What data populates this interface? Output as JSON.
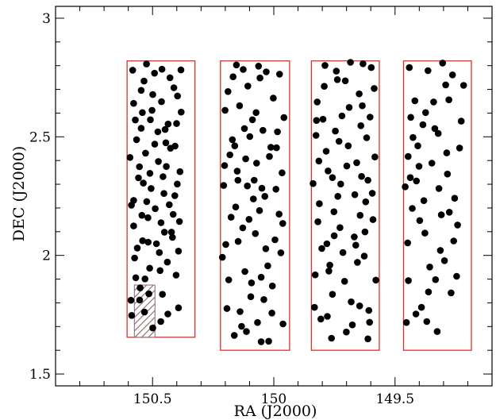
{
  "chart_data": {
    "type": "scatter",
    "xlabel": "RA (J2000)",
    "ylabel": "DEC (J2000)",
    "xlim": [
      150.9,
      149.1
    ],
    "ylim": [
      1.45,
      3.05
    ],
    "xaxis_reversed": true,
    "xticks": [
      150.5,
      150,
      149.5
    ],
    "xtick_labels": [
      "150.5",
      "150",
      "149.5"
    ],
    "yticks": [
      1.5,
      2,
      2.5,
      3
    ],
    "ytick_labels": [
      "1.5",
      "2",
      "2.5",
      "3"
    ],
    "grid": false,
    "legend": "none",
    "marker_color": "#000000",
    "field_outline_color": "#e0302a",
    "masked_region_color": "#8a6a6a",
    "fields": [
      {
        "ra_min": 150.325,
        "ra_max": 150.605,
        "dec_min": 1.655,
        "dec_max": 2.82
      },
      {
        "ra_min": 149.935,
        "ra_max": 150.22,
        "dec_min": 1.6,
        "dec_max": 2.82
      },
      {
        "ra_min": 149.565,
        "ra_max": 149.845,
        "dec_min": 1.6,
        "dec_max": 2.82
      },
      {
        "ra_min": 149.185,
        "ra_max": 149.465,
        "dec_min": 1.6,
        "dec_max": 2.82
      }
    ],
    "masked_region": {
      "ra_min": 150.49,
      "ra_max": 150.575,
      "dec_min": 1.655,
      "dec_max": 1.875
    },
    "points": [
      [
        150.553,
        1.812
      ],
      [
        150.393,
        2.018
      ],
      [
        150.512,
        1.946
      ],
      [
        150.538,
        2.305
      ],
      [
        150.422,
        2.098
      ],
      [
        150.502,
        2.612
      ],
      [
        150.506,
        2.282
      ],
      [
        150.578,
        2.232
      ],
      [
        150.465,
        2.138
      ],
      [
        150.531,
        1.901
      ],
      [
        150.412,
        2.707
      ],
      [
        150.445,
        2.475
      ],
      [
        150.563,
        2.031
      ],
      [
        150.387,
        2.353
      ],
      [
        150.492,
        2.768
      ],
      [
        150.529,
        2.431
      ],
      [
        150.459,
        1.836
      ],
      [
        150.571,
        2.571
      ],
      [
        150.431,
        2.214
      ],
      [
        150.519,
        2.159
      ],
      [
        150.401,
        2.556
      ],
      [
        150.484,
        2.049
      ],
      [
        150.547,
        2.696
      ],
      [
        150.586,
        1.747
      ],
      [
        150.476,
        2.396
      ],
      [
        150.439,
        1.972
      ],
      [
        150.525,
        2.807
      ],
      [
        150.393,
        1.779
      ],
      [
        150.554,
        2.374
      ],
      [
        150.463,
        2.648
      ],
      [
        150.578,
        2.124
      ],
      [
        150.408,
        2.252
      ],
      [
        150.499,
        1.694
      ],
      [
        150.448,
        2.531
      ],
      [
        150.566,
        2.488
      ],
      [
        150.418,
        2.076
      ],
      [
        150.535,
        2.735
      ],
      [
        150.489,
        2.197
      ],
      [
        150.382,
        2.604
      ],
      [
        150.551,
        1.863
      ],
      [
        150.457,
        2.332
      ],
      [
        150.593,
        2.413
      ],
      [
        150.437,
        1.753
      ],
      [
        150.509,
        2.572
      ],
      [
        150.472,
        2.012
      ],
      [
        150.582,
        2.781
      ],
      [
        150.426,
        2.452
      ],
      [
        150.544,
        2.169
      ],
      [
        150.397,
        2.672
      ],
      [
        150.518,
        2.056
      ],
      [
        150.453,
        2.261
      ],
      [
        150.574,
        1.989
      ],
      [
        150.403,
        1.917
      ],
      [
        150.491,
        2.469
      ],
      [
        150.542,
        2.602
      ],
      [
        150.466,
        1.721
      ],
      [
        150.389,
        2.143
      ],
      [
        150.558,
        2.327
      ],
      [
        150.428,
        2.749
      ],
      [
        150.515,
        1.838
      ],
      [
        150.478,
        2.521
      ],
      [
        150.587,
        2.212
      ],
      [
        150.443,
        2.375
      ],
      [
        150.533,
        1.761
      ],
      [
        150.407,
        2.461
      ],
      [
        150.499,
        2.678
      ],
      [
        150.569,
        1.906
      ],
      [
        150.451,
        2.098
      ],
      [
        150.383,
        2.782
      ],
      [
        150.547,
        2.536
      ],
      [
        150.469,
        1.936
      ],
      [
        150.511,
        2.346
      ],
      [
        150.415,
        2.173
      ],
      [
        150.578,
        2.641
      ],
      [
        150.436,
        2.554
      ],
      [
        150.524,
        2.227
      ],
      [
        150.461,
        2.785
      ],
      [
        150.589,
        1.811
      ],
      [
        150.398,
        2.301
      ],
      [
        150.541,
        2.062
      ],
      [
        149.978,
        2.174
      ],
      [
        150.012,
        2.456
      ],
      [
        150.057,
        2.748
      ],
      [
        150.092,
        1.884
      ],
      [
        150.148,
        2.317
      ],
      [
        150.201,
        2.612
      ],
      [
        149.962,
        1.711
      ],
      [
        150.033,
        2.028
      ],
      [
        150.121,
        2.535
      ],
      [
        150.176,
        2.161
      ],
      [
        150.071,
        2.389
      ],
      [
        149.991,
        2.279
      ],
      [
        150.139,
        1.763
      ],
      [
        150.198,
        2.046
      ],
      [
        150.052,
        1.636
      ],
      [
        150.107,
        2.714
      ],
      [
        149.958,
        2.581
      ],
      [
        150.025,
        1.956
      ],
      [
        150.161,
        2.462
      ],
      [
        150.084,
        2.238
      ],
      [
        150.186,
        1.897
      ],
      [
        150.002,
        2.663
      ],
      [
        150.128,
        2.116
      ],
      [
        150.063,
        2.798
      ],
      [
        149.971,
        2.011
      ],
      [
        150.151,
        2.355
      ],
      [
        150.041,
        1.814
      ],
      [
        150.099,
        2.501
      ],
      [
        150.207,
        2.295
      ],
      [
        150.018,
        2.417
      ],
      [
        150.113,
        1.679
      ],
      [
        150.168,
        2.753
      ],
      [
        149.985,
        2.521
      ],
      [
        150.076,
        2.092
      ],
      [
        150.141,
        2.631
      ],
      [
        150.049,
        2.283
      ],
      [
        150.193,
        1.776
      ],
      [
        150.006,
        1.871
      ],
      [
        150.088,
        2.572
      ],
      [
        150.157,
        2.204
      ],
      [
        149.966,
        2.348
      ],
      [
        150.031,
        2.774
      ],
      [
        150.119,
        1.932
      ],
      [
        150.181,
        2.424
      ],
      [
        150.067,
        1.717
      ],
      [
        150.102,
        2.152
      ],
      [
        149.995,
        2.066
      ],
      [
        150.154,
        2.803
      ],
      [
        150.045,
        2.527
      ],
      [
        150.212,
        1.992
      ],
      [
        150.081,
        2.317
      ],
      [
        150.133,
        1.701
      ],
      [
        149.976,
        2.764
      ],
      [
        150.059,
        2.189
      ],
      [
        150.171,
        2.488
      ],
      [
        150.021,
        1.638
      ],
      [
        150.116,
        2.407
      ],
      [
        150.037,
        2.249
      ],
      [
        150.189,
        2.691
      ],
      [
        150.095,
        1.826
      ],
      [
        150.147,
        2.059
      ],
      [
        149.963,
        2.135
      ],
      [
        150.073,
        2.602
      ],
      [
        150.203,
        2.379
      ],
      [
        150.008,
        1.757
      ],
      [
        150.126,
        2.784
      ],
      [
        150.052,
        1.908
      ],
      [
        150.163,
        1.663
      ],
      [
        149.989,
        2.454
      ],
      [
        150.109,
        2.293
      ],
      [
        149.612,
        2.317
      ],
      [
        149.781,
        2.049
      ],
      [
        149.705,
        2.736
      ],
      [
        149.646,
        1.787
      ],
      [
        149.824,
        2.569
      ],
      [
        149.583,
        2.415
      ],
      [
        149.752,
        2.184
      ],
      [
        149.689,
        2.624
      ],
      [
        149.806,
        1.732
      ],
      [
        149.624,
        2.099
      ],
      [
        149.731,
        2.481
      ],
      [
        149.598,
        2.792
      ],
      [
        149.773,
        1.934
      ],
      [
        149.666,
        2.256
      ],
      [
        149.838,
        2.303
      ],
      [
        149.612,
        1.648
      ],
      [
        149.715,
        2.012
      ],
      [
        149.792,
        2.713
      ],
      [
        149.641,
        2.547
      ],
      [
        149.758,
        1.836
      ],
      [
        149.579,
        1.896
      ],
      [
        149.699,
        2.377
      ],
      [
        149.818,
        2.142
      ],
      [
        149.655,
        1.971
      ],
      [
        149.742,
        2.777
      ],
      [
        149.621,
        2.226
      ],
      [
        149.784,
        2.439
      ],
      [
        149.676,
        1.707
      ],
      [
        149.832,
        1.781
      ],
      [
        149.603,
        2.583
      ],
      [
        149.724,
        2.301
      ],
      [
        149.762,
        1.651
      ],
      [
        149.648,
        2.681
      ],
      [
        149.802,
        2.029
      ],
      [
        149.591,
        2.151
      ],
      [
        149.708,
        1.891
      ],
      [
        149.776,
        2.356
      ],
      [
        149.632,
        2.808
      ],
      [
        149.746,
        2.524
      ],
      [
        149.668,
        2.078
      ],
      [
        149.821,
        2.647
      ],
      [
        149.608,
        1.768
      ],
      [
        149.693,
        2.462
      ],
      [
        149.769,
        1.959
      ],
      [
        149.638,
        2.333
      ],
      [
        149.812,
        2.218
      ],
      [
        149.586,
        2.704
      ],
      [
        149.727,
        2.117
      ],
      [
        149.681,
        1.804
      ],
      [
        149.797,
        2.574
      ],
      [
        149.627,
        1.997
      ],
      [
        149.738,
        2.741
      ],
      [
        149.658,
        2.391
      ],
      [
        149.829,
        1.918
      ],
      [
        149.617,
        2.496
      ],
      [
        149.751,
        2.083
      ],
      [
        149.701,
        1.677
      ],
      [
        149.789,
        2.801
      ],
      [
        149.644,
        2.169
      ],
      [
        149.814,
        2.398
      ],
      [
        149.594,
        2.262
      ],
      [
        149.719,
        2.588
      ],
      [
        149.779,
        1.743
      ],
      [
        149.662,
        2.043
      ],
      [
        149.736,
        2.249
      ],
      [
        149.605,
        1.718
      ],
      [
        149.826,
        2.506
      ],
      [
        149.684,
        2.814
      ],
      [
        149.758,
        2.328
      ],
      [
        149.635,
        2.631
      ],
      [
        149.412,
        2.314
      ],
      [
        149.336,
        2.535
      ],
      [
        149.258,
        2.061
      ],
      [
        149.441,
        2.792
      ],
      [
        149.362,
        1.846
      ],
      [
        149.287,
        2.432
      ],
      [
        149.398,
        2.147
      ],
      [
        149.217,
        2.717
      ],
      [
        149.453,
        1.717
      ],
      [
        149.319,
        2.282
      ],
      [
        149.374,
        2.602
      ],
      [
        149.246,
        1.912
      ],
      [
        149.426,
        2.497
      ],
      [
        149.304,
        2.811
      ],
      [
        149.391,
        1.781
      ],
      [
        149.276,
        2.182
      ],
      [
        149.448,
        2.053
      ],
      [
        149.348,
        2.389
      ],
      [
        149.227,
        2.566
      ],
      [
        149.418,
        2.652
      ],
      [
        149.296,
        1.978
      ],
      [
        149.381,
        2.231
      ],
      [
        149.263,
        2.761
      ],
      [
        149.437,
        2.328
      ],
      [
        149.326,
        1.679
      ],
      [
        149.406,
        2.462
      ],
      [
        149.242,
        2.128
      ],
      [
        149.364,
        2.779
      ],
      [
        149.284,
        2.343
      ],
      [
        149.445,
        1.894
      ],
      [
        149.313,
        2.021
      ],
      [
        149.385,
        2.551
      ],
      [
        149.269,
        1.842
      ],
      [
        149.429,
        2.198
      ],
      [
        149.341,
        2.647
      ],
      [
        149.401,
        2.376
      ],
      [
        149.234,
        2.453
      ],
      [
        149.357,
        1.951
      ],
      [
        149.458,
        2.289
      ],
      [
        149.291,
        2.719
      ],
      [
        149.377,
        2.094
      ],
      [
        149.254,
        2.241
      ],
      [
        149.414,
        1.753
      ],
      [
        149.322,
        2.514
      ],
      [
        149.435,
        2.582
      ],
      [
        149.309,
        2.171
      ],
      [
        149.369,
        1.721
      ],
      [
        149.278,
        2.656
      ],
      [
        149.446,
        2.417
      ],
      [
        149.333,
        1.898
      ]
    ]
  }
}
